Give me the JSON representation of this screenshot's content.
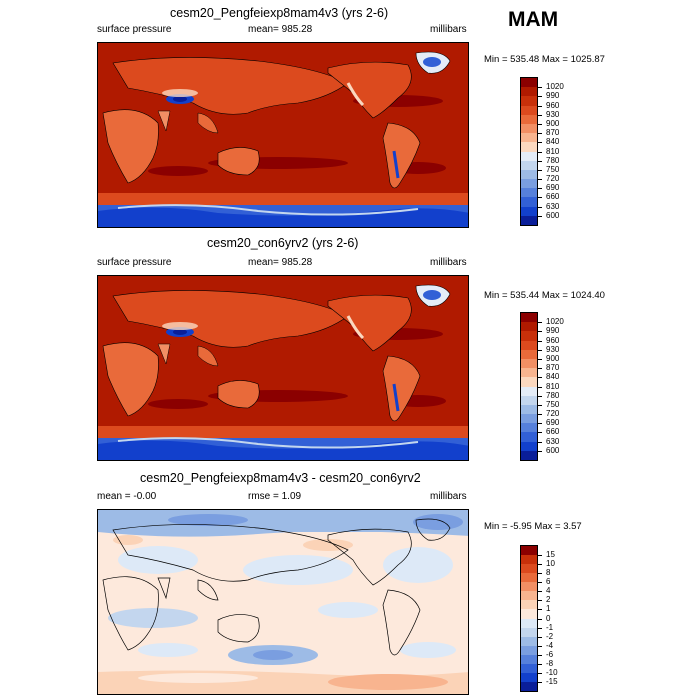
{
  "season": "MAM",
  "panels": [
    {
      "title": "cesm20_Pengfeiexp8mam4v3 (yrs 2-6)",
      "left_label": "surface pressure",
      "center_label": "mean= 985.28",
      "right_label": "millibars",
      "minmax": "Min = 535.48 Max = 1025.87",
      "colorbar": {
        "levels": [
          "1020",
          "990",
          "960",
          "930",
          "900",
          "870",
          "840",
          "810",
          "780",
          "750",
          "720",
          "690",
          "660",
          "630",
          "600"
        ],
        "colors": [
          "#8b0000",
          "#b01a00",
          "#c8300a",
          "#dc4a1e",
          "#e96a3a",
          "#f28f64",
          "#f8b48f",
          "#fbd8bf",
          "#e4ecf7",
          "#c3d6ee",
          "#9dbbe6",
          "#7a9ee0",
          "#5680db",
          "#3260d6",
          "#1240cc",
          "#0a1e99"
        ]
      }
    },
    {
      "title": "cesm20_con6yrv2 (yrs 2-6)",
      "left_label": "surface pressure",
      "center_label": "mean= 985.28",
      "right_label": "millibars",
      "minmax": "Min = 535.44 Max = 1024.40",
      "colorbar": {
        "levels": [
          "1020",
          "990",
          "960",
          "930",
          "900",
          "870",
          "840",
          "810",
          "780",
          "750",
          "720",
          "690",
          "660",
          "630",
          "600"
        ],
        "colors": [
          "#8b0000",
          "#b01a00",
          "#c8300a",
          "#dc4a1e",
          "#e96a3a",
          "#f28f64",
          "#f8b48f",
          "#fbd8bf",
          "#e4ecf7",
          "#c3d6ee",
          "#9dbbe6",
          "#7a9ee0",
          "#5680db",
          "#3260d6",
          "#1240cc",
          "#0a1e99"
        ]
      }
    },
    {
      "title": "cesm20_Pengfeiexp8mam4v3 - cesm20_con6yrv2",
      "left_label": "mean =  -0.00",
      "center_label": "rmse =   1.09",
      "right_label": "millibars",
      "minmax": "Min =  -5.95 Max =   3.57",
      "colorbar": {
        "levels": [
          "15",
          "10",
          "8",
          "6",
          "4",
          "2",
          "1",
          "0",
          "-1",
          "-2",
          "-4",
          "-6",
          "-8",
          "-10",
          "-15"
        ],
        "colors": [
          "#8b0000",
          "#c8300a",
          "#dc4a1e",
          "#e96a3a",
          "#f28f64",
          "#f8b48f",
          "#fbd3b7",
          "#fde9dc",
          "#dde9f7",
          "#c3d6ee",
          "#9dbbe6",
          "#7a9ee0",
          "#5680db",
          "#3260d6",
          "#1240cc",
          "#0a1e99"
        ]
      }
    }
  ]
}
